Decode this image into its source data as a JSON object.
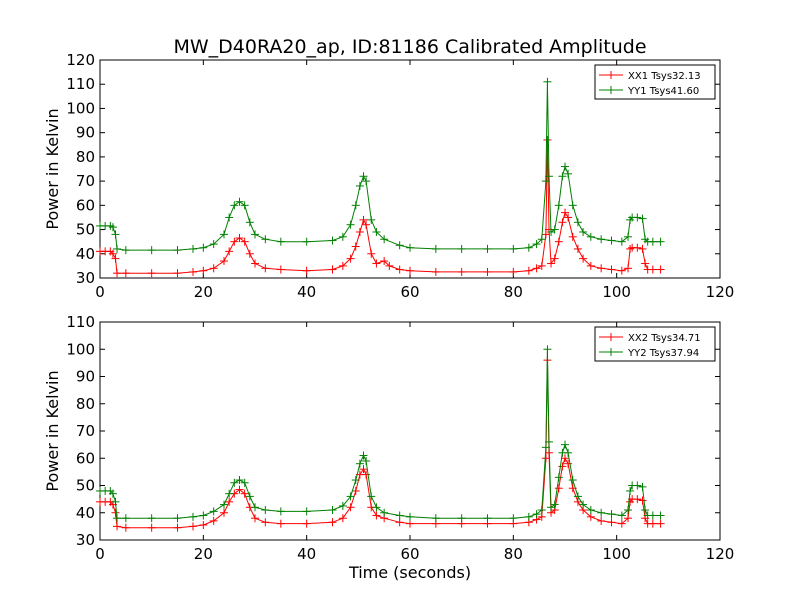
{
  "figure": {
    "title": "MW_D40RA20_ap, ID:81186 Calibrated Amplitude"
  },
  "chart_data": [
    {
      "type": "line",
      "title": "MW_D40RA20_ap, ID:81186 Calibrated Amplitude",
      "xlabel": "",
      "ylabel": "Power in Kelvin",
      "xlim": [
        0,
        120
      ],
      "ylim": [
        30,
        120
      ],
      "xticks": [
        "0",
        "20",
        "40",
        "60",
        "80",
        "100",
        "120"
      ],
      "yticks": [
        "30",
        "40",
        "50",
        "60",
        "70",
        "80",
        "90",
        "100",
        "110",
        "120"
      ],
      "grid": false,
      "legend_position": "top-right",
      "marker": "+",
      "series": [
        {
          "name": "XX1 Tsys32.13",
          "color": "#ff0000",
          "points": [
            [
              0,
              41
            ],
            [
              1,
              41
            ],
            [
              2,
              41
            ],
            [
              2.5,
              40
            ],
            [
              3,
              38
            ],
            [
              3.3,
              32
            ],
            [
              5,
              32
            ],
            [
              10,
              32
            ],
            [
              15,
              32
            ],
            [
              18,
              32.5
            ],
            [
              20,
              33
            ],
            [
              22,
              34
            ],
            [
              24,
              37
            ],
            [
              25,
              41
            ],
            [
              26,
              45
            ],
            [
              27,
              46.5
            ],
            [
              28,
              45
            ],
            [
              29,
              40
            ],
            [
              30,
              36
            ],
            [
              32,
              34
            ],
            [
              35,
              33.5
            ],
            [
              40,
              33
            ],
            [
              45,
              33.5
            ],
            [
              47,
              35
            ],
            [
              48.5,
              38
            ],
            [
              49.5,
              43
            ],
            [
              50.3,
              49
            ],
            [
              51,
              54
            ],
            [
              51.5,
              52
            ],
            [
              52.5,
              40
            ],
            [
              53.5,
              36
            ],
            [
              55,
              37
            ],
            [
              56,
              35
            ],
            [
              58,
              33.5
            ],
            [
              60,
              33
            ],
            [
              65,
              32.5
            ],
            [
              70,
              32.5
            ],
            [
              75,
              32.5
            ],
            [
              80,
              32.5
            ],
            [
              83,
              33
            ],
            [
              84.5,
              34
            ],
            [
              85.5,
              35
            ],
            [
              86.3,
              48
            ],
            [
              86.6,
              87
            ],
            [
              86.9,
              50
            ],
            [
              87.3,
              36
            ],
            [
              88,
              38
            ],
            [
              88.8,
              45
            ],
            [
              89.5,
              53
            ],
            [
              90,
              57
            ],
            [
              90.6,
              55
            ],
            [
              91.5,
              47
            ],
            [
              92.5,
              42
            ],
            [
              93.5,
              38
            ],
            [
              95,
              35
            ],
            [
              97,
              34
            ],
            [
              99,
              33.5
            ],
            [
              101,
              33
            ],
            [
              102.2,
              34
            ],
            [
              102.6,
              42
            ],
            [
              103,
              42.5
            ],
            [
              104,
              42.5
            ],
            [
              105,
              42
            ],
            [
              105.5,
              36
            ],
            [
              106,
              33.5
            ],
            [
              107,
              33.5
            ],
            [
              108.5,
              33.5
            ]
          ]
        },
        {
          "name": "YY1 Tsys41.60",
          "color": "#008000",
          "points": [
            [
              0,
              51.5
            ],
            [
              1,
              51.5
            ],
            [
              2,
              51.5
            ],
            [
              2.5,
              51
            ],
            [
              3,
              48
            ],
            [
              3.3,
              42
            ],
            [
              5,
              41.5
            ],
            [
              10,
              41.5
            ],
            [
              15,
              41.5
            ],
            [
              18,
              42
            ],
            [
              20,
              42.5
            ],
            [
              22,
              44
            ],
            [
              24,
              48
            ],
            [
              25,
              55
            ],
            [
              26,
              60
            ],
            [
              27,
              61.5
            ],
            [
              28,
              60
            ],
            [
              29,
              53
            ],
            [
              30,
              48
            ],
            [
              32,
              46
            ],
            [
              35,
              45
            ],
            [
              40,
              45
            ],
            [
              45,
              45.5
            ],
            [
              47,
              47
            ],
            [
              48.5,
              52
            ],
            [
              49.5,
              60
            ],
            [
              50.3,
              68
            ],
            [
              51,
              72
            ],
            [
              51.5,
              70
            ],
            [
              52.5,
              54
            ],
            [
              53.5,
              49
            ],
            [
              55,
              46
            ],
            [
              58,
              43.5
            ],
            [
              60,
              42.5
            ],
            [
              65,
              42
            ],
            [
              70,
              42
            ],
            [
              75,
              42
            ],
            [
              80,
              42
            ],
            [
              83,
              42.5
            ],
            [
              84.5,
              44
            ],
            [
              85.5,
              46
            ],
            [
              86.3,
              70
            ],
            [
              86.6,
              111
            ],
            [
              86.9,
              72
            ],
            [
              87.3,
              49
            ],
            [
              88,
              50
            ],
            [
              88.8,
              60
            ],
            [
              89.5,
              72
            ],
            [
              90,
              76
            ],
            [
              90.6,
              73
            ],
            [
              91.5,
              60
            ],
            [
              92.5,
              53
            ],
            [
              93.5,
              49
            ],
            [
              95,
              47
            ],
            [
              97,
              46
            ],
            [
              99,
              45.5
            ],
            [
              101,
              45
            ],
            [
              102.2,
              47
            ],
            [
              102.6,
              54
            ],
            [
              103,
              55
            ],
            [
              104,
              55
            ],
            [
              105,
              54.5
            ],
            [
              105.5,
              46
            ],
            [
              106,
              45
            ],
            [
              107,
              45
            ],
            [
              108.5,
              45
            ]
          ]
        }
      ]
    },
    {
      "type": "line",
      "title": "",
      "xlabel": "Time (seconds)",
      "ylabel": "Power in Kelvin",
      "xlim": [
        0,
        120
      ],
      "ylim": [
        30,
        110
      ],
      "xticks": [
        "0",
        "20",
        "40",
        "60",
        "80",
        "100",
        "120"
      ],
      "yticks": [
        "30",
        "40",
        "50",
        "60",
        "70",
        "80",
        "90",
        "100",
        "110"
      ],
      "grid": false,
      "legend_position": "top-right",
      "marker": "+",
      "series": [
        {
          "name": "XX2 Tsys34.71",
          "color": "#ff0000",
          "points": [
            [
              0,
              44
            ],
            [
              1,
              44
            ],
            [
              2,
              44
            ],
            [
              2.5,
              43
            ],
            [
              3,
              40
            ],
            [
              3.3,
              35
            ],
            [
              5,
              34.5
            ],
            [
              10,
              34.5
            ],
            [
              15,
              34.5
            ],
            [
              18,
              35
            ],
            [
              20,
              35.5
            ],
            [
              22,
              37
            ],
            [
              24,
              40
            ],
            [
              25,
              44
            ],
            [
              26,
              47
            ],
            [
              27,
              48.5
            ],
            [
              28,
              47
            ],
            [
              29,
              42
            ],
            [
              30,
              38
            ],
            [
              32,
              36.5
            ],
            [
              35,
              36
            ],
            [
              40,
              36
            ],
            [
              45,
              36.5
            ],
            [
              47,
              38
            ],
            [
              48.5,
              42
            ],
            [
              49.5,
              48
            ],
            [
              50.3,
              54
            ],
            [
              51,
              56
            ],
            [
              51.5,
              54
            ],
            [
              52.5,
              42
            ],
            [
              53.5,
              39
            ],
            [
              55,
              38
            ],
            [
              58,
              36.5
            ],
            [
              60,
              36
            ],
            [
              65,
              36
            ],
            [
              70,
              36
            ],
            [
              75,
              36
            ],
            [
              80,
              36
            ],
            [
              83,
              36.5
            ],
            [
              84.5,
              37.5
            ],
            [
              85.5,
              38.5
            ],
            [
              86.3,
              60
            ],
            [
              86.6,
              96
            ],
            [
              86.9,
              62
            ],
            [
              87.3,
              40
            ],
            [
              88,
              41
            ],
            [
              88.8,
              49
            ],
            [
              89.5,
              57
            ],
            [
              90,
              60
            ],
            [
              90.6,
              58
            ],
            [
              91.5,
              49
            ],
            [
              92.5,
              44
            ],
            [
              93.5,
              41
            ],
            [
              95,
              38.5
            ],
            [
              97,
              37
            ],
            [
              99,
              36.5
            ],
            [
              101,
              36
            ],
            [
              102.2,
              38
            ],
            [
              102.6,
              44
            ],
            [
              103,
              45
            ],
            [
              104,
              45
            ],
            [
              105,
              44.5
            ],
            [
              105.5,
              38
            ],
            [
              106,
              36
            ],
            [
              107,
              36
            ],
            [
              108.5,
              36
            ]
          ]
        },
        {
          "name": "YY2 Tsys37.94",
          "color": "#008000",
          "points": [
            [
              0,
              48
            ],
            [
              1,
              48
            ],
            [
              2,
              48
            ],
            [
              2.5,
              47
            ],
            [
              3,
              44
            ],
            [
              3.3,
              38
            ],
            [
              5,
              38
            ],
            [
              10,
              38
            ],
            [
              15,
              38
            ],
            [
              18,
              38.5
            ],
            [
              20,
              39
            ],
            [
              22,
              40.5
            ],
            [
              24,
              43
            ],
            [
              25,
              47
            ],
            [
              26,
              51
            ],
            [
              27,
              52
            ],
            [
              28,
              51
            ],
            [
              29,
              46
            ],
            [
              30,
              42
            ],
            [
              32,
              41
            ],
            [
              35,
              40.5
            ],
            [
              40,
              40.5
            ],
            [
              45,
              41
            ],
            [
              47,
              42.5
            ],
            [
              48.5,
              46
            ],
            [
              49.5,
              52
            ],
            [
              50.3,
              58
            ],
            [
              51,
              61
            ],
            [
              51.5,
              59
            ],
            [
              52.5,
              46
            ],
            [
              53.5,
              42
            ],
            [
              55,
              40
            ],
            [
              58,
              39
            ],
            [
              60,
              38.5
            ],
            [
              65,
              38
            ],
            [
              70,
              38
            ],
            [
              75,
              38
            ],
            [
              80,
              38
            ],
            [
              83,
              38.5
            ],
            [
              84.5,
              39.5
            ],
            [
              85.5,
              41
            ],
            [
              86.3,
              64
            ],
            [
              86.6,
              100
            ],
            [
              86.9,
              66
            ],
            [
              87.3,
              42
            ],
            [
              88,
              43
            ],
            [
              88.8,
              53
            ],
            [
              89.5,
              62
            ],
            [
              90,
              65
            ],
            [
              90.6,
              62
            ],
            [
              91.5,
              52
            ],
            [
              92.5,
              46
            ],
            [
              93.5,
              43
            ],
            [
              95,
              41
            ],
            [
              97,
              40
            ],
            [
              99,
              39.5
            ],
            [
              101,
              39
            ],
            [
              102.2,
              41
            ],
            [
              102.6,
              48
            ],
            [
              103,
              50
            ],
            [
              104,
              50
            ],
            [
              105,
              49.5
            ],
            [
              105.5,
              41
            ],
            [
              106,
              39
            ],
            [
              107,
              39
            ],
            [
              108.5,
              39
            ]
          ]
        }
      ]
    }
  ]
}
